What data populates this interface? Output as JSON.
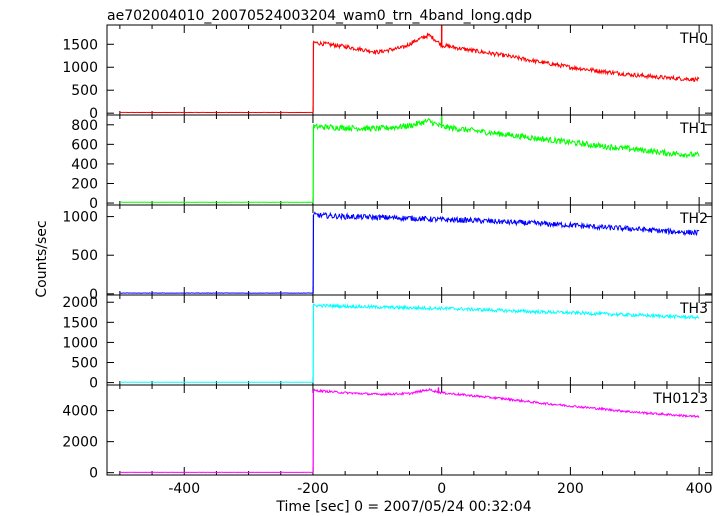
{
  "title": "ae702004010_20070524003204_wam0_trn_4band_long.qdp",
  "ylabel": "Counts/sec",
  "xlabel": "Time [sec] 0 = 2007/05/24 00:32:04",
  "chart_data": [
    {
      "type": "line",
      "name": "TH0",
      "color": "#ff0000",
      "xlim": [
        -520,
        420
      ],
      "ylim": [
        -40,
        1920
      ],
      "yticks": [
        0,
        500,
        1000,
        1500
      ],
      "ytick_labels": [
        "0",
        "500",
        "1000",
        "1500"
      ],
      "x": [
        -500,
        -250,
        -200,
        -199,
        -150,
        -100,
        -60,
        -40,
        -20,
        -10,
        0,
        20,
        50,
        100,
        150,
        200,
        250,
        300,
        350,
        400
      ],
      "values": [
        15,
        15,
        15,
        1540,
        1450,
        1330,
        1430,
        1580,
        1700,
        1600,
        1480,
        1430,
        1360,
        1250,
        1120,
        1000,
        910,
        830,
        770,
        730
      ],
      "spikes": [
        {
          "x": 0,
          "y": 1900
        }
      ],
      "noise": 45
    },
    {
      "type": "line",
      "name": "TH1",
      "color": "#00ff00",
      "xlim": [
        -520,
        420
      ],
      "ylim": [
        -20,
        900
      ],
      "yticks": [
        0,
        200,
        400,
        600,
        800
      ],
      "ytick_labels": [
        "0",
        "200",
        "400",
        "600",
        "800"
      ],
      "x": [
        -500,
        -250,
        -200,
        -199,
        -150,
        -100,
        -50,
        -20,
        0,
        50,
        100,
        150,
        200,
        250,
        300,
        350,
        400
      ],
      "values": [
        8,
        8,
        8,
        780,
        770,
        760,
        790,
        840,
        780,
        740,
        700,
        660,
        620,
        580,
        550,
        510,
        490
      ],
      "spikes": [
        {
          "x": 0,
          "y": 890
        }
      ],
      "noise": 30
    },
    {
      "type": "line",
      "name": "TH2",
      "color": "#0000ff",
      "xlim": [
        -520,
        420
      ],
      "ylim": [
        -15,
        1150
      ],
      "yticks": [
        0,
        500,
        1000
      ],
      "ytick_labels": [
        "0",
        "500",
        "1000"
      ],
      "x": [
        -500,
        -250,
        -200,
        -199,
        -150,
        -100,
        -50,
        0,
        50,
        100,
        150,
        200,
        250,
        300,
        350,
        400
      ],
      "values": [
        10,
        10,
        10,
        1020,
        1000,
        990,
        980,
        960,
        950,
        930,
        910,
        890,
        860,
        840,
        810,
        790
      ],
      "spikes": [],
      "noise": 35
    },
    {
      "type": "line",
      "name": "TH3",
      "color": "#00ffff",
      "xlim": [
        -520,
        420
      ],
      "ylim": [
        -60,
        2180
      ],
      "yticks": [
        0,
        500,
        1000,
        1500,
        2000
      ],
      "ytick_labels": [
        "0",
        "500",
        "1000",
        "1500",
        "2000"
      ],
      "x": [
        -500,
        -250,
        -200,
        -199,
        -150,
        -100,
        -50,
        0,
        50,
        100,
        150,
        200,
        250,
        300,
        350,
        400
      ],
      "values": [
        10,
        10,
        10,
        1920,
        1900,
        1880,
        1860,
        1850,
        1820,
        1790,
        1760,
        1740,
        1710,
        1680,
        1650,
        1620
      ],
      "spikes": [],
      "noise": 40
    },
    {
      "type": "line",
      "name": "TH0123",
      "color": "#ff00ff",
      "xlim": [
        -520,
        420
      ],
      "ylim": [
        -150,
        5650
      ],
      "yticks": [
        0,
        2000,
        4000
      ],
      "ytick_labels": [
        "0",
        "2000",
        "4000"
      ],
      "xticks": [
        -400,
        -200,
        0,
        200,
        400
      ],
      "xtick_labels": [
        "-400",
        "-200",
        "0",
        "200",
        "400"
      ],
      "x": [
        -500,
        -250,
        -200,
        -199,
        -150,
        -100,
        -50,
        -20,
        0,
        50,
        100,
        150,
        200,
        250,
        300,
        350,
        400
      ],
      "values": [
        20,
        20,
        20,
        5300,
        5150,
        5050,
        5100,
        5350,
        5150,
        4950,
        4750,
        4500,
        4300,
        4100,
        3900,
        3750,
        3600
      ],
      "spikes": [
        {
          "x": -5,
          "y": 5500
        }
      ],
      "noise": 70
    }
  ]
}
